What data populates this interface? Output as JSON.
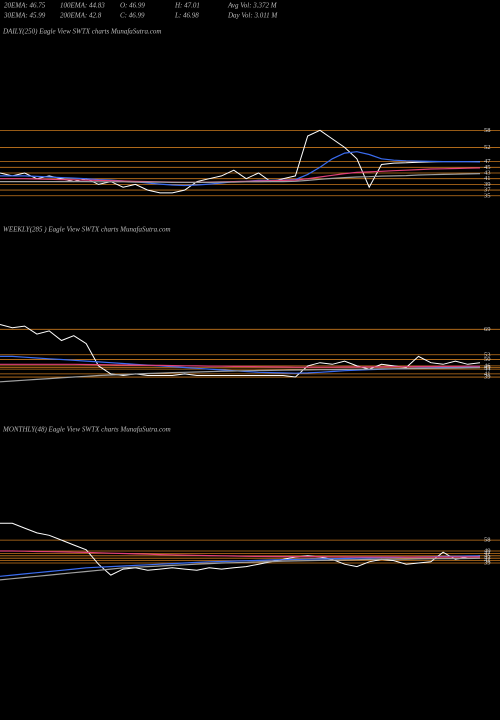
{
  "header": {
    "lines": [
      [
        "20EMA: 46.75",
        "100EMA: 44.83",
        "O: 46.99",
        "H: 47.01",
        "Avg Vol: 3.372  M"
      ],
      [
        "30EMA: 45.99",
        "200EMA: 42.8",
        "C: 46.99",
        "L: 46.98",
        "Day Vol: 3.011  M"
      ]
    ]
  },
  "chart_data": [
    {
      "type": "line",
      "title": "DAILY(250) Eagle  View  SWTX  charts MunafaSutra.com",
      "ylim": [
        30,
        88
      ],
      "yticks": [
        58,
        52,
        47,
        45,
        43,
        41,
        39,
        37,
        35
      ],
      "level_color": "#c8781e",
      "series": [
        {
          "color": "#ffffff",
          "values": [
            43,
            42,
            43,
            41,
            42,
            41,
            40,
            41,
            39,
            40,
            38,
            39,
            37,
            36,
            36,
            37,
            40,
            41,
            42,
            44,
            41,
            43,
            40,
            41,
            42,
            56,
            58,
            55,
            52,
            48,
            38,
            46,
            46.5,
            46.6,
            46.8,
            46.9,
            47,
            47,
            47,
            47
          ]
        },
        {
          "color": "#3a6cf0",
          "values": [
            42,
            42,
            42,
            41.8,
            41.6,
            41.4,
            41.2,
            41,
            40.7,
            40.5,
            40.2,
            39.9,
            39.5,
            39.1,
            38.8,
            38.6,
            38.8,
            39.1,
            39.5,
            40,
            40.1,
            40.4,
            40.4,
            40.5,
            40.7,
            42.5,
            45,
            48,
            50,
            50.5,
            49.5,
            48,
            47.5,
            47.3,
            47.2,
            47.1,
            47,
            47,
            47,
            46.9
          ]
        },
        {
          "color": "#e0407a",
          "values": [
            41,
            41,
            41,
            40.9,
            40.8,
            40.7,
            40.6,
            40.5,
            40.4,
            40.3,
            40.2,
            40.1,
            40,
            39.9,
            39.8,
            39.7,
            39.7,
            39.8,
            39.9,
            40,
            40.1,
            40.2,
            40.3,
            40.4,
            40.5,
            41,
            41.6,
            42.2,
            42.8,
            43.2,
            43.4,
            43.6,
            43.8,
            44,
            44.2,
            44.4,
            44.5,
            44.6,
            44.7,
            44.8
          ]
        },
        {
          "color": "#a0a0a0",
          "values": [
            40,
            40,
            40,
            40,
            40,
            40,
            40,
            40,
            39.9,
            39.9,
            39.9,
            39.8,
            39.8,
            39.8,
            39.7,
            39.7,
            39.7,
            39.7,
            39.8,
            39.8,
            39.9,
            39.9,
            40,
            40,
            40.1,
            40.4,
            40.8,
            41.1,
            41.4,
            41.6,
            41.7,
            41.9,
            42,
            42.1,
            42.3,
            42.4,
            42.5,
            42.6,
            42.7,
            42.8
          ]
        }
      ]
    },
    {
      "type": "line",
      "title": "WEEKLY(285                ) Eagle  View  SWTX  charts MunafaSutra.com",
      "ylim": [
        12,
        122
      ],
      "yticks": [
        69,
        53,
        50,
        46,
        45,
        44,
        41,
        39
      ],
      "level_color": "#c8781e",
      "series": [
        {
          "color": "#ffffff",
          "values": [
            72,
            70,
            71,
            66,
            68,
            62,
            65,
            60,
            46,
            41,
            40,
            41,
            40,
            40,
            40,
            41,
            40,
            40,
            40,
            40,
            40,
            40,
            40,
            40,
            39,
            46,
            48,
            47,
            49,
            46,
            44,
            47,
            46,
            45,
            52,
            48,
            47,
            49,
            47,
            48
          ]
        },
        {
          "color": "#3a6cf0",
          "values": [
            52,
            52,
            51.5,
            51,
            50.5,
            50,
            49.5,
            49,
            48.5,
            48,
            47.5,
            47,
            46.5,
            46,
            45.5,
            45,
            44.5,
            44,
            43.5,
            43,
            42.5,
            42,
            41.8,
            41.6,
            41.4,
            41.6,
            42,
            42.5,
            43,
            43.3,
            43.6,
            43.9,
            44.1,
            44.3,
            44.6,
            44.8,
            45,
            45.2,
            45.4,
            45.6
          ]
        },
        {
          "color": "#e0407a",
          "values": [
            47,
            47,
            47,
            47,
            47,
            47,
            47,
            46.9,
            46.8,
            46.7,
            46.6,
            46.5,
            46.4,
            46.3,
            46.2,
            46.1,
            46,
            45.9,
            45.8,
            45.7,
            45.6,
            45.5,
            45.4,
            45.3,
            45.2,
            45.2,
            45.2,
            45.2,
            45.3,
            45.3,
            45.4,
            45.4,
            45.5,
            45.5,
            45.6,
            45.6,
            45.7,
            45.7,
            45.8,
            45.8
          ]
        },
        {
          "color": "#a0a0a0",
          "values": [
            36,
            36.5,
            37,
            37.5,
            38,
            38.5,
            39,
            39.5,
            40,
            40.3,
            40.6,
            40.9,
            41.2,
            41.5,
            41.8,
            42,
            42.2,
            42.4,
            42.6,
            42.8,
            43,
            43.1,
            43.2,
            43.3,
            43.4,
            43.5,
            43.6,
            43.7,
            43.8,
            43.9,
            44,
            44.1,
            44.2,
            44.3,
            44.4,
            44.5,
            44.6,
            44.7,
            44.8,
            44.9
          ]
        }
      ]
    },
    {
      "type": "line",
      "title": "MONTHLY(48) Eagle  View  SWTX  charts MunafaSutra.com",
      "ylim": [
        0,
        137
      ],
      "yticks": [
        58,
        49,
        47,
        45,
        43,
        41,
        39
      ],
      "level_color": "#c8781e",
      "series": [
        {
          "color": "#ffffff",
          "values": [
            72,
            72,
            68,
            64,
            62,
            58,
            54,
            50,
            38,
            29,
            34,
            35,
            33,
            34,
            35,
            34,
            33,
            35,
            34,
            35,
            36,
            38,
            40,
            42,
            44,
            45,
            44,
            42,
            38,
            36,
            40,
            42,
            41,
            38,
            39,
            40,
            48,
            42,
            44,
            45
          ]
        },
        {
          "color": "#3a6cf0",
          "values": [
            28,
            29,
            30,
            31,
            32,
            33,
            34,
            35,
            35.5,
            36,
            36.5,
            37,
            37.5,
            38,
            38.5,
            39,
            39.5,
            40,
            40.3,
            40.6,
            40.9,
            41.2,
            41.5,
            41.8,
            42,
            42.2,
            42.4,
            42.6,
            42.8,
            43,
            43.2,
            43.4,
            43.6,
            43.8,
            44,
            44.2,
            44.4,
            44.6,
            44.8,
            45
          ]
        },
        {
          "color": "#e0407a",
          "values": [
            49,
            49,
            48.8,
            48.6,
            48.4,
            48.2,
            48,
            47.8,
            47.5,
            47.2,
            46.9,
            46.6,
            46.3,
            46,
            45.8,
            45.6,
            45.4,
            45.2,
            45,
            44.8,
            44.6,
            44.5,
            44.4,
            44.3,
            44.3,
            44.3,
            44.3,
            44.2,
            44.1,
            44,
            44,
            44,
            44,
            43.9,
            43.9,
            43.9,
            44,
            44,
            44.1,
            44.1
          ]
        },
        {
          "color": "#a0a0a0",
          "values": [
            25,
            26,
            27,
            28,
            29,
            30,
            31,
            32,
            33,
            34,
            35,
            35.5,
            36,
            36.5,
            37,
            37.5,
            38,
            38.5,
            39,
            39.3,
            39.6,
            39.9,
            40.2,
            40.5,
            40.8,
            41,
            41.2,
            41.4,
            41.6,
            41.8,
            42,
            42.1,
            42.2,
            42.3,
            42.4,
            42.5,
            42.6,
            42.7,
            42.8,
            42.9
          ]
        }
      ]
    }
  ]
}
